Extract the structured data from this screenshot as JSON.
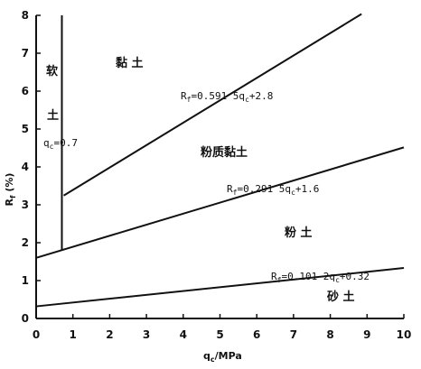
{
  "chart_data": {
    "type": "line",
    "xlabel": "q_c/MPa",
    "ylabel": "R_f (%)",
    "xlim": [
      0,
      10
    ],
    "ylim": [
      0,
      8
    ],
    "x_ticks": [
      "0",
      "1",
      "2",
      "3",
      "4",
      "5",
      "6",
      "7",
      "8",
      "9",
      "10"
    ],
    "y_ticks": [
      "0",
      "1",
      "2",
      "3",
      "4",
      "5",
      "6",
      "7",
      "8"
    ],
    "grid": false,
    "series": [
      {
        "equation": "R_f=0.591 5q_c+2.8",
        "slope": 0.5915,
        "intercept": 2.8,
        "x_start": 0.75,
        "x_end": 8.85
      },
      {
        "equation": "R_f=0.291 5q_c+1.6",
        "slope": 0.2915,
        "intercept": 1.6,
        "x_start": 0,
        "x_end": 10
      },
      {
        "equation": "R_f=0.101 2q_c+0.32",
        "slope": 0.1012,
        "intercept": 0.32,
        "x_start": 0,
        "x_end": 10
      }
    ],
    "vertical_line": {
      "x": 0.7,
      "y_start": 1.8,
      "y_end": 8,
      "label": "q_c=0.7"
    },
    "regions": [
      "黏 土",
      "软",
      "土",
      "粉质黏土",
      "粉 土",
      "砂 土"
    ]
  }
}
